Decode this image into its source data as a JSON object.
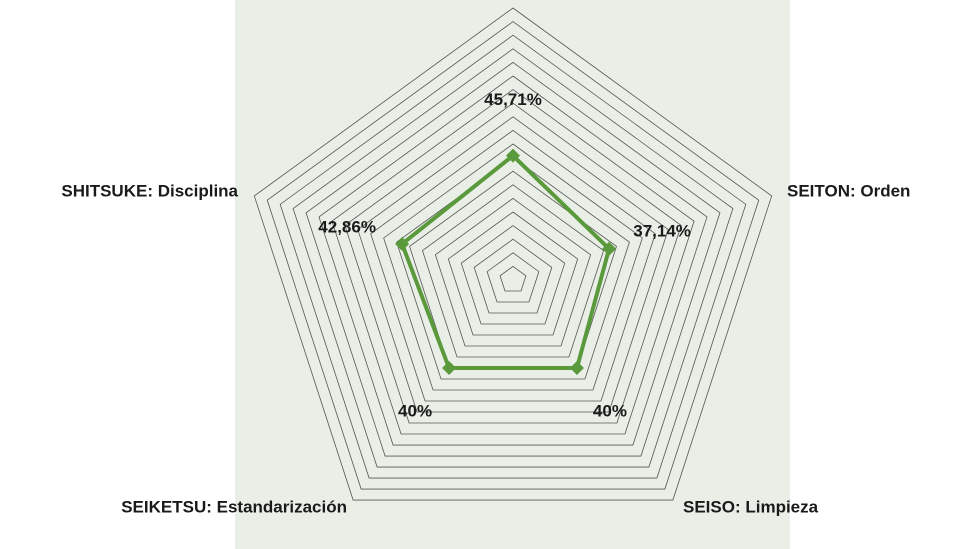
{
  "chart_data": {
    "type": "radar",
    "categories": [
      null,
      "SEITON: Orden",
      "SEISO: Limpieza",
      "SEIKETSU: Estandarización",
      "SHITSUKE: Disciplina"
    ],
    "values": [
      45.71,
      37.14,
      40,
      40,
      42.86
    ],
    "value_labels": [
      "45,71%",
      "37,14%",
      "40%",
      "40%",
      "42,86%"
    ],
    "color": "#5b9a3c",
    "ylim": [
      0,
      100
    ],
    "yticks": [
      0,
      5,
      10,
      15,
      20,
      25,
      30,
      35,
      40,
      45,
      50,
      55,
      60,
      65,
      70,
      75,
      80,
      85,
      90,
      95,
      100
    ],
    "grid": true
  }
}
